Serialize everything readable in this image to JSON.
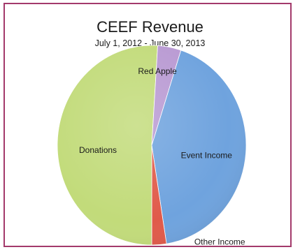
{
  "chart_data": {
    "type": "pie",
    "title": "CEEF Revenue",
    "subtitle": "July 1, 2012 - June 30, 2013",
    "slices": [
      {
        "label": "Event Income",
        "value": 42.5,
        "color": "#6fa3de"
      },
      {
        "label": "Other Income",
        "value": 2.5,
        "color": "#e05a4a"
      },
      {
        "label": "Donations",
        "value": 51.0,
        "color": "#c2db7a"
      },
      {
        "label": "Red Apple",
        "value": 4.0,
        "color": "#b99ad3"
      }
    ],
    "label_placement": "inside"
  }
}
